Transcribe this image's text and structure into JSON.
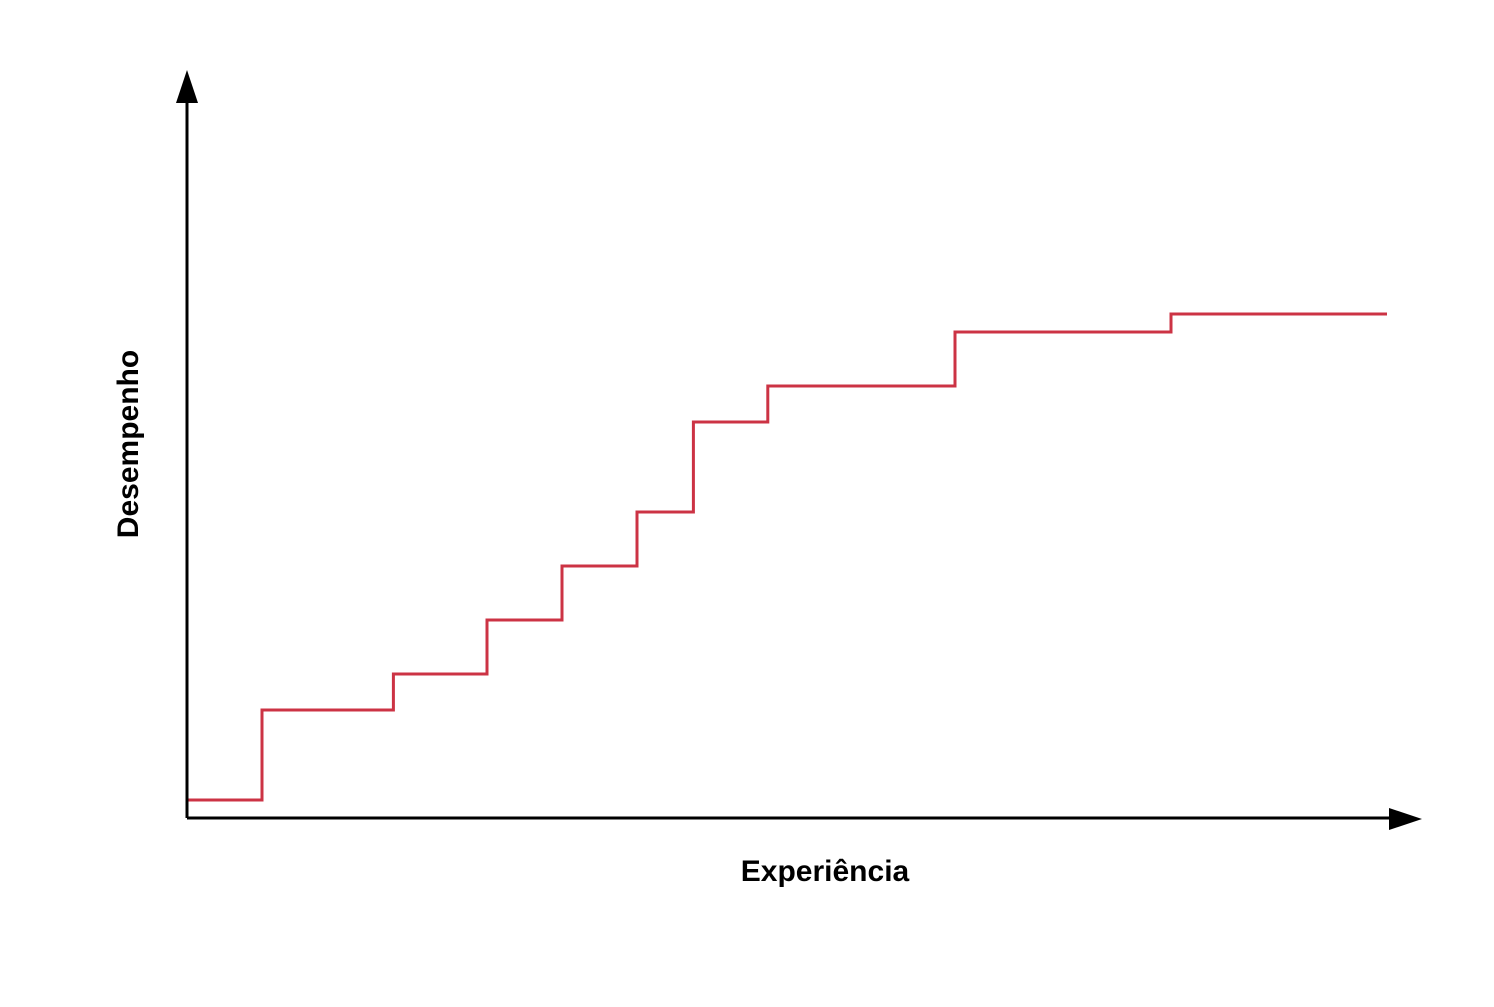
{
  "chart_data": {
    "type": "line",
    "step": true,
    "xlabel": "Experiência",
    "ylabel": "Desempenho",
    "xlim": [
      0,
      100
    ],
    "ylim": [
      0,
      100
    ],
    "grid": false,
    "ticks": false,
    "series": [
      {
        "color": "#cc3344",
        "x": [
          0,
          6.25,
          6.25,
          17.2,
          17.2,
          25,
          25,
          31.25,
          31.25,
          37.5,
          37.5,
          42.2,
          42.2,
          48.4,
          48.4,
          64,
          64,
          82,
          82,
          100
        ],
        "y": [
          2.5,
          2.5,
          15,
          15,
          20,
          20,
          27.5,
          27.5,
          35,
          35,
          42.5,
          42.5,
          55,
          55,
          60,
          60,
          67.5,
          67.5,
          70,
          70
        ]
      }
    ]
  }
}
